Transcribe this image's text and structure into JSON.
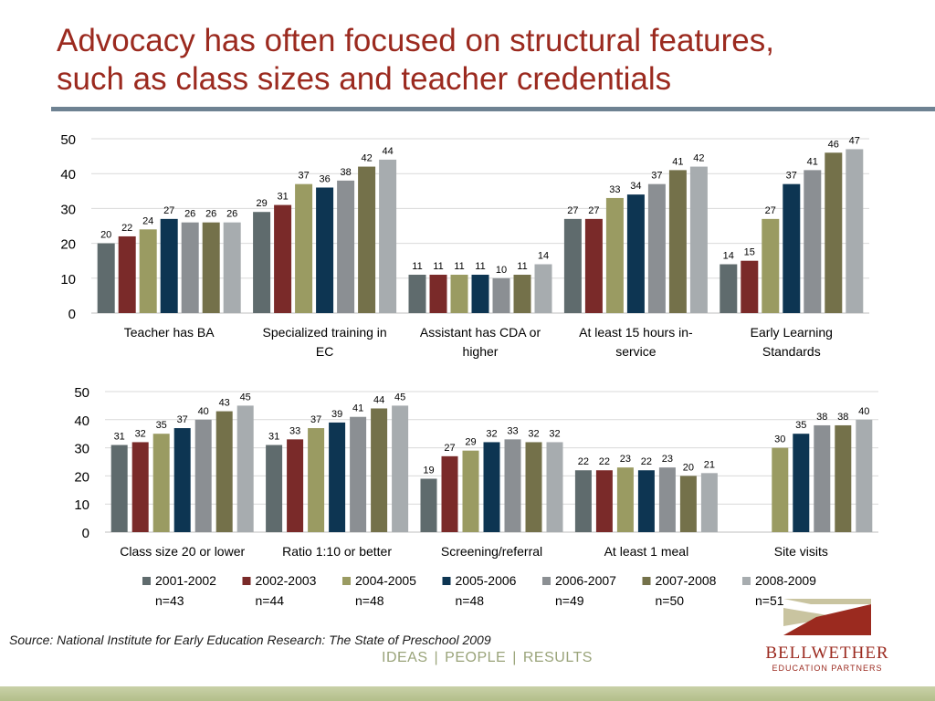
{
  "slide": {
    "title_line1": "Advocacy has often focused on structural features,",
    "title_line2": "such as class sizes and teacher credentials",
    "source": "Source: National Institute for Early Education Research: The State of Preschool 2009",
    "tagline": [
      "IDEAS",
      "PEOPLE",
      "RESULTS"
    ],
    "tagline_separator": "|",
    "brand_name": "BELLWETHER",
    "brand_sub": "EDUCATION PARTNERS"
  },
  "colors": {
    "title": "#9b2a1f",
    "rule": "#6e8292",
    "grid": "#d9d9d9",
    "axis_text": "#000000",
    "tagline": "#9aa47a",
    "logo_tan": "#c9c4a0",
    "logo_red": "#9b2a1f"
  },
  "chart_data": [
    {
      "type": "bar",
      "ylim": [
        0,
        50
      ],
      "yticks": [
        0,
        10,
        20,
        30,
        40,
        50
      ],
      "grid": true,
      "categories": [
        [
          "Teacher has BA"
        ],
        [
          "Specialized training in",
          "EC"
        ],
        [
          "Assistant has CDA or",
          "higher"
        ],
        [
          "At least 15 hours in-",
          "service"
        ],
        [
          "Early Learning",
          "Standards"
        ]
      ],
      "series": [
        {
          "name": "2001-2002",
          "values": [
            20,
            29,
            11,
            27,
            14
          ]
        },
        {
          "name": "2002-2003",
          "values": [
            22,
            31,
            11,
            27,
            15
          ]
        },
        {
          "name": "2004-2005",
          "values": [
            24,
            37,
            11,
            33,
            27
          ]
        },
        {
          "name": "2005-2006",
          "values": [
            27,
            36,
            11,
            34,
            37
          ]
        },
        {
          "name": "2006-2007",
          "values": [
            26,
            38,
            10,
            37,
            41
          ]
        },
        {
          "name": "2007-2008",
          "values": [
            26,
            42,
            11,
            41,
            46
          ]
        },
        {
          "name": "2008-2009",
          "values": [
            26,
            44,
            14,
            42,
            47
          ]
        }
      ]
    },
    {
      "type": "bar",
      "ylim": [
        0,
        50
      ],
      "yticks": [
        0,
        10,
        20,
        30,
        40,
        50
      ],
      "grid": true,
      "categories": [
        [
          "Class size 20 or lower"
        ],
        [
          "Ratio 1:10 or better"
        ],
        [
          "Screening/referral"
        ],
        [
          "At least 1 meal"
        ],
        [
          "Site visits"
        ]
      ],
      "series": [
        {
          "name": "2001-2002",
          "values": [
            31,
            31,
            19,
            22,
            null
          ]
        },
        {
          "name": "2002-2003",
          "values": [
            32,
            33,
            27,
            22,
            null
          ]
        },
        {
          "name": "2004-2005",
          "values": [
            35,
            37,
            29,
            23,
            30
          ]
        },
        {
          "name": "2005-2006",
          "values": [
            37,
            39,
            32,
            22,
            35
          ]
        },
        {
          "name": "2006-2007",
          "values": [
            40,
            41,
            33,
            23,
            38
          ]
        },
        {
          "name": "2007-2008",
          "values": [
            43,
            44,
            32,
            20,
            38
          ]
        },
        {
          "name": "2008-2009",
          "values": [
            45,
            45,
            32,
            21,
            40
          ]
        }
      ]
    }
  ],
  "legend": {
    "placement": "bottom",
    "items": [
      {
        "label": "2001-2002",
        "n": "n=43",
        "color": "#5f6b6d"
      },
      {
        "label": "2002-2003",
        "n": "n=44",
        "color": "#7a2a29"
      },
      {
        "label": "2004-2005",
        "n": "n=48",
        "color": "#9a9b62"
      },
      {
        "label": "2005-2006",
        "n": "n=48",
        "color": "#0d3552"
      },
      {
        "label": "2006-2007",
        "n": "n=49",
        "color": "#8b8f93"
      },
      {
        "label": "2007-2008",
        "n": "n=50",
        "color": "#74714a"
      },
      {
        "label": "2008-2009",
        "n": "n=51",
        "color": "#a7acaf"
      }
    ]
  }
}
